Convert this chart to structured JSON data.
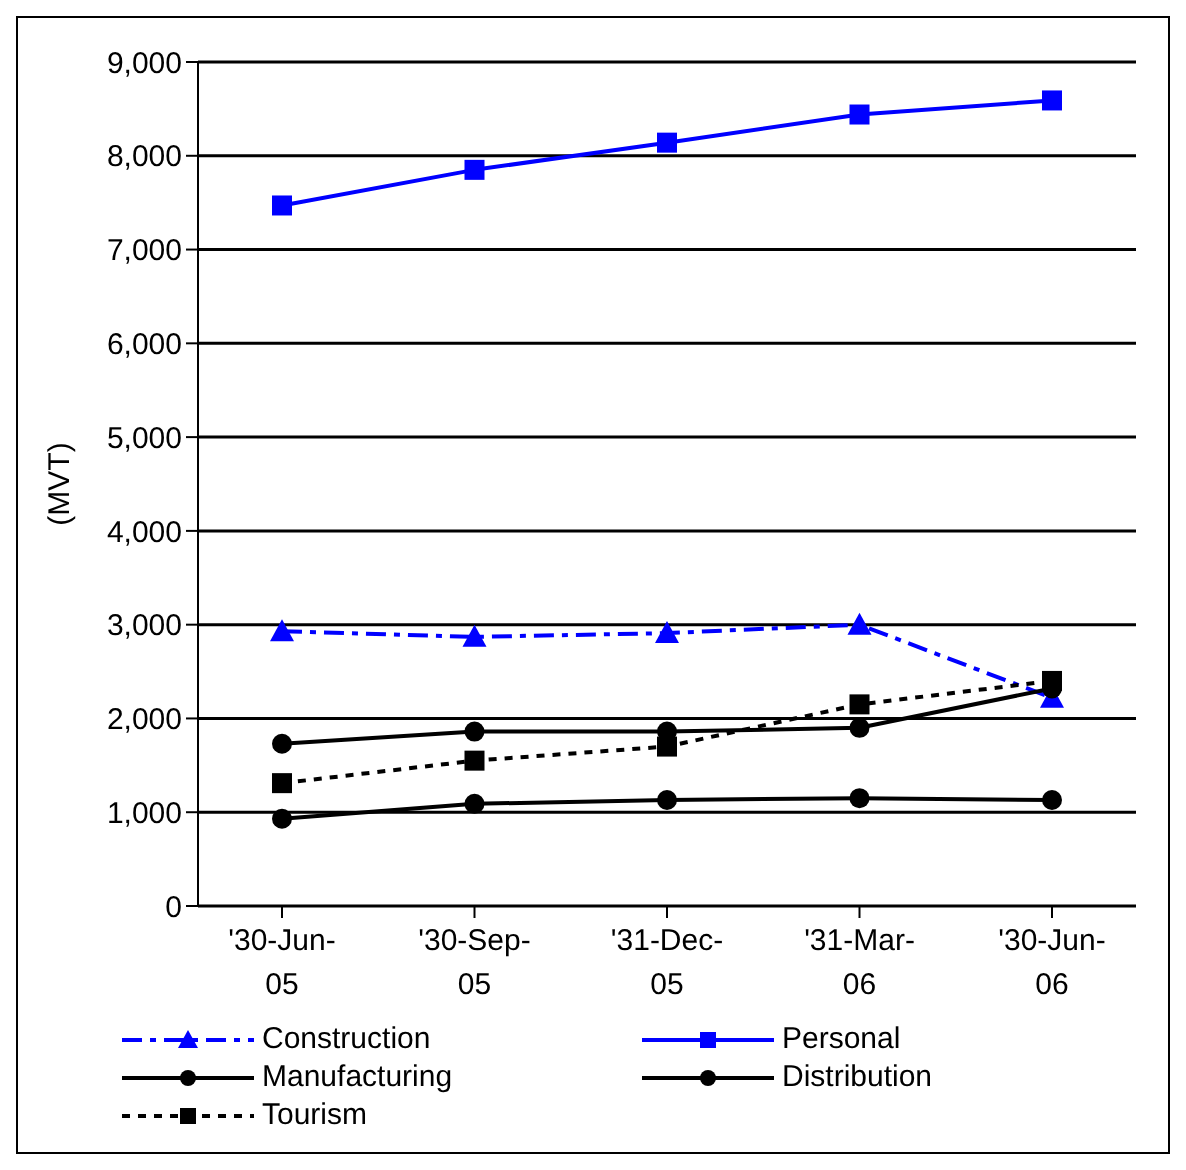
{
  "chart_data": {
    "type": "line",
    "ylabel": "(MVT)",
    "categories": [
      "'30-Jun-05",
      "'30-Sep-05",
      "'31-Dec-05",
      "'31-Mar-06",
      "'30-Jun-06"
    ],
    "series": [
      {
        "name": "Construction",
        "color": "#0000ff",
        "marker": "triangle",
        "line_style": "dashed",
        "values": [
          2930,
          2870,
          2910,
          3000,
          2220
        ]
      },
      {
        "name": "Personal",
        "color": "#0000ff",
        "marker": "square",
        "line_style": "solid",
        "values": [
          7470,
          7850,
          8140,
          8440,
          8590
        ]
      },
      {
        "name": "Manufacturing",
        "color": "#000000",
        "marker": "circle",
        "line_style": "solid",
        "values": [
          930,
          1090,
          1130,
          1150,
          1130
        ]
      },
      {
        "name": "Distribution",
        "color": "#000000",
        "marker": "circle",
        "line_style": "solid",
        "values": [
          1730,
          1860,
          1860,
          1900,
          2320
        ]
      },
      {
        "name": "Tourism",
        "color": "#000000",
        "marker": "square",
        "line_style": "dotted",
        "values": [
          1310,
          1550,
          1700,
          2150,
          2400
        ]
      }
    ],
    "ylim": [
      0,
      9000
    ],
    "yticks": [
      0,
      {
        "value": 1000,
        "label": "1,000"
      },
      {
        "value": 2000,
        "label": "2,000"
      },
      {
        "value": 3000,
        "label": "3,000"
      },
      {
        "value": 4000,
        "label": "4,000"
      },
      {
        "value": 5000,
        "label": "5,000"
      },
      {
        "value": 6000,
        "label": "6,000"
      },
      {
        "value": 7000,
        "label": "7,000"
      },
      {
        "value": 8000,
        "label": "8,000"
      },
      {
        "value": 9000,
        "label": "9,000"
      }
    ],
    "grid": "y",
    "legend": "bottom"
  }
}
